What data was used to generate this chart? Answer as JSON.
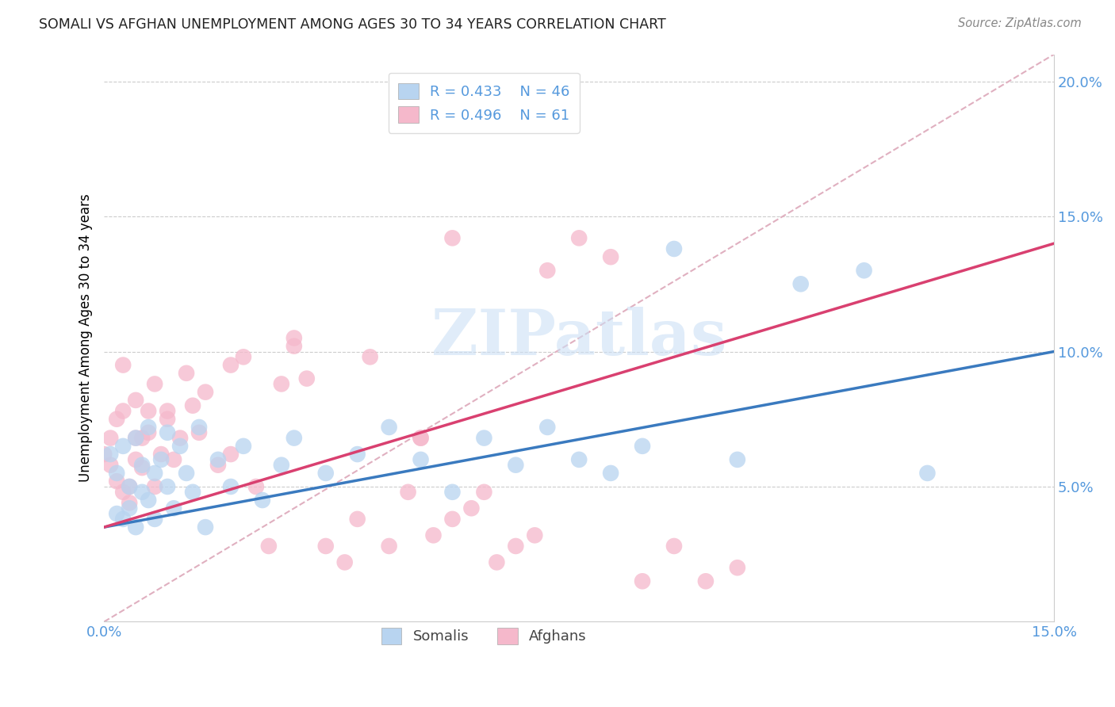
{
  "title": "SOMALI VS AFGHAN UNEMPLOYMENT AMONG AGES 30 TO 34 YEARS CORRELATION CHART",
  "source": "Source: ZipAtlas.com",
  "ylabel": "Unemployment Among Ages 30 to 34 years",
  "xlim": [
    0.0,
    0.15
  ],
  "ylim": [
    0.0,
    0.21
  ],
  "somali_R": "0.433",
  "somali_N": "46",
  "afghan_R": "0.496",
  "afghan_N": "61",
  "somali_scatter_color": "#b8d4f0",
  "afghan_scatter_color": "#f5b8cb",
  "line_somali_color": "#3a7abf",
  "line_afghan_color": "#d94070",
  "diagonal_color": "#e0b0c0",
  "tick_color": "#5599dd",
  "watermark": "ZIPatlas",
  "somali_x": [
    0.001,
    0.002,
    0.002,
    0.003,
    0.003,
    0.004,
    0.004,
    0.005,
    0.005,
    0.006,
    0.006,
    0.007,
    0.007,
    0.008,
    0.008,
    0.009,
    0.01,
    0.01,
    0.011,
    0.012,
    0.013,
    0.014,
    0.015,
    0.016,
    0.018,
    0.02,
    0.022,
    0.025,
    0.028,
    0.03,
    0.035,
    0.04,
    0.045,
    0.05,
    0.055,
    0.06,
    0.065,
    0.07,
    0.075,
    0.08,
    0.085,
    0.09,
    0.1,
    0.11,
    0.12,
    0.13
  ],
  "somali_y": [
    0.062,
    0.04,
    0.055,
    0.038,
    0.065,
    0.05,
    0.042,
    0.068,
    0.035,
    0.048,
    0.058,
    0.045,
    0.072,
    0.055,
    0.038,
    0.06,
    0.05,
    0.07,
    0.042,
    0.065,
    0.055,
    0.048,
    0.072,
    0.035,
    0.06,
    0.05,
    0.065,
    0.045,
    0.058,
    0.068,
    0.055,
    0.062,
    0.072,
    0.06,
    0.048,
    0.068,
    0.058,
    0.072,
    0.06,
    0.055,
    0.065,
    0.138,
    0.06,
    0.125,
    0.13,
    0.055
  ],
  "afghan_x": [
    0.0,
    0.001,
    0.001,
    0.002,
    0.002,
    0.003,
    0.003,
    0.004,
    0.004,
    0.005,
    0.005,
    0.006,
    0.006,
    0.007,
    0.007,
    0.008,
    0.008,
    0.009,
    0.01,
    0.011,
    0.012,
    0.013,
    0.014,
    0.015,
    0.016,
    0.018,
    0.02,
    0.022,
    0.024,
    0.026,
    0.028,
    0.03,
    0.032,
    0.035,
    0.038,
    0.04,
    0.042,
    0.045,
    0.048,
    0.05,
    0.052,
    0.055,
    0.055,
    0.058,
    0.06,
    0.062,
    0.065,
    0.068,
    0.07,
    0.075,
    0.08,
    0.085,
    0.09,
    0.095,
    0.1,
    0.05,
    0.03,
    0.02,
    0.01,
    0.005,
    0.003
  ],
  "afghan_y": [
    0.062,
    0.058,
    0.068,
    0.075,
    0.052,
    0.048,
    0.078,
    0.05,
    0.044,
    0.06,
    0.082,
    0.068,
    0.057,
    0.07,
    0.078,
    0.05,
    0.088,
    0.062,
    0.075,
    0.06,
    0.068,
    0.092,
    0.08,
    0.07,
    0.085,
    0.058,
    0.062,
    0.098,
    0.05,
    0.028,
    0.088,
    0.102,
    0.09,
    0.028,
    0.022,
    0.038,
    0.098,
    0.028,
    0.048,
    0.068,
    0.032,
    0.038,
    0.142,
    0.042,
    0.048,
    0.022,
    0.028,
    0.032,
    0.13,
    0.142,
    0.135,
    0.015,
    0.028,
    0.015,
    0.02,
    0.068,
    0.105,
    0.095,
    0.078,
    0.068,
    0.095
  ]
}
